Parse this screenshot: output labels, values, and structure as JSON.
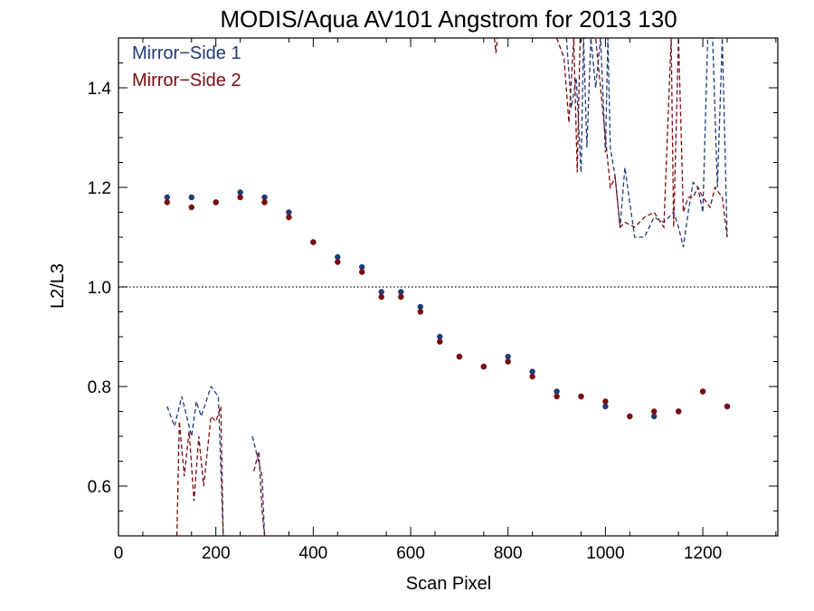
{
  "chart_data": {
    "type": "scatter",
    "title": "MODIS/Aqua AV101 Angstrom for 2013 130",
    "xlabel": "Scan Pixel",
    "ylabel": "L2/L3",
    "xlim": [
      0,
      1354
    ],
    "ylim": [
      0.5,
      1.5
    ],
    "xticks": [
      0,
      200,
      400,
      600,
      800,
      1000,
      1200
    ],
    "yticks": [
      0.6,
      0.8,
      1.0,
      1.2,
      1.4
    ],
    "reference_line": {
      "y": 1.0,
      "style": "dotted"
    },
    "legend_position": "top-left",
    "colors": {
      "ms1": "#1f3a78",
      "ms2": "#7a0a10"
    },
    "series": [
      {
        "name": "Mirror−Side 1",
        "color": "#1f3a78",
        "points": {
          "x": [
            100,
            150,
            200,
            250,
            300,
            350,
            400,
            450,
            500,
            540,
            580,
            620,
            660,
            700,
            750,
            800,
            850,
            900,
            950,
            1000,
            1050,
            1100,
            1150,
            1200,
            1250
          ],
          "y": [
            1.18,
            1.18,
            1.17,
            1.19,
            1.18,
            1.15,
            1.09,
            1.06,
            1.04,
            0.99,
            0.99,
            0.96,
            0.9,
            0.86,
            0.84,
            0.86,
            0.83,
            0.79,
            0.78,
            0.76,
            0.74,
            0.74,
            0.75,
            0.79,
            0.76
          ]
        },
        "dashed": [
          {
            "x": [
              100,
              115,
              130,
              150,
              160,
              170,
              190,
              205,
              215,
              220
            ],
            "y": [
              0.76,
              0.72,
              0.78,
              0.7,
              0.77,
              0.74,
              0.8,
              0.78,
              0.5,
              0.5
            ]
          },
          {
            "x": [
              275,
              285,
              295,
              300
            ],
            "y": [
              0.7,
              0.66,
              0.62,
              0.5
            ]
          },
          {
            "x": [
              920,
              930,
              940,
              950,
              955,
              962,
              970,
              980,
              990,
              1000,
              1005,
              1010,
              1020,
              1030,
              1040,
              1060,
              1080,
              1100,
              1120,
              1140,
              1150,
              1160,
              1170,
              1180,
              1190,
              1200,
              1210,
              1220,
              1230,
              1240,
              1250
            ],
            "y": [
              1.5,
              1.36,
              1.42,
              1.23,
              1.5,
              1.28,
              1.5,
              1.4,
              1.5,
              1.27,
              1.5,
              1.28,
              1.22,
              1.12,
              1.24,
              1.1,
              1.1,
              1.14,
              1.13,
              1.15,
              1.12,
              1.08,
              1.15,
              1.21,
              1.2,
              1.15,
              1.5,
              1.5,
              1.2,
              1.5,
              1.1
            ]
          }
        ]
      },
      {
        "name": "Mirror−Side 2",
        "color": "#7a0a10",
        "points": {
          "x": [
            100,
            150,
            200,
            250,
            300,
            350,
            400,
            450,
            500,
            540,
            580,
            620,
            660,
            700,
            750,
            800,
            850,
            900,
            950,
            1000,
            1050,
            1100,
            1150,
            1200,
            1250
          ],
          "y": [
            1.17,
            1.16,
            1.17,
            1.18,
            1.17,
            1.14,
            1.09,
            1.05,
            1.03,
            0.98,
            0.98,
            0.95,
            0.89,
            0.86,
            0.84,
            0.85,
            0.82,
            0.78,
            0.78,
            0.77,
            0.74,
            0.75,
            0.75,
            0.79,
            0.76
          ]
        },
        "dashed": [
          {
            "x": [
              120,
              125,
              135,
              145,
              155,
              165,
              175,
              190,
              200,
              210,
              215
            ],
            "y": [
              0.5,
              0.73,
              0.62,
              0.71,
              0.57,
              0.7,
              0.6,
              0.74,
              0.73,
              0.76,
              0.5
            ]
          },
          {
            "x": [
              278,
              288,
              295,
              300
            ],
            "y": [
              0.63,
              0.67,
              0.55,
              0.5
            ]
          },
          {
            "x": [
              772,
              775,
              778
            ],
            "y": [
              1.5,
              1.47,
              1.5
            ]
          },
          {
            "x": [
              900,
              915,
              925,
              935,
              942,
              948,
              952,
              958,
              980,
              990,
              1000,
              1010,
              1020,
              1030,
              1040,
              1060,
              1080,
              1100,
              1120,
              1135,
              1140,
              1150,
              1160,
              1170,
              1180,
              1190,
              1200,
              1215,
              1225,
              1240,
              1250
            ],
            "y": [
              1.5,
              1.46,
              1.33,
              1.5,
              1.23,
              1.5,
              1.5,
              1.5,
              1.5,
              1.4,
              1.3,
              1.2,
              1.22,
              1.12,
              1.13,
              1.12,
              1.14,
              1.15,
              1.12,
              1.5,
              1.12,
              1.5,
              1.15,
              1.18,
              1.18,
              1.2,
              1.18,
              1.16,
              1.2,
              1.18,
              1.1
            ]
          }
        ]
      }
    ]
  }
}
